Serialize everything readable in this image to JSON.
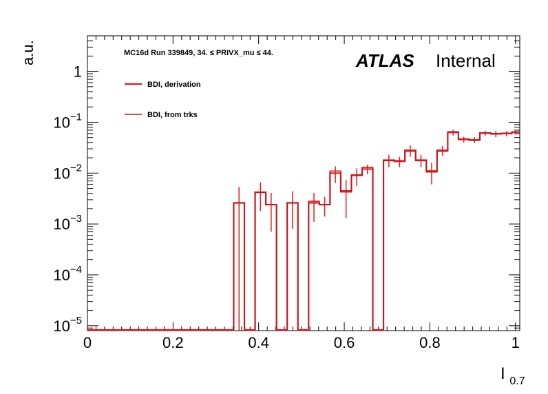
{
  "header": {
    "brand": "ATLAS",
    "status": "Internal",
    "condition": "MC16d Run 339849, 34. ≤ PRIVX_mu ≤ 44."
  },
  "chart_data": {
    "type": "line",
    "title": "",
    "xlabel_main": "I",
    "xlabel_sub": "0.7",
    "ylabel": "a.u.",
    "xlim": [
      0,
      1.01
    ],
    "ylim": [
      8e-06,
      5
    ],
    "yscale": "log",
    "grid": false,
    "x_ticks": [
      {
        "v": 0,
        "label": "0"
      },
      {
        "v": 0.2,
        "label": "0.2"
      },
      {
        "v": 0.4,
        "label": "0.4"
      },
      {
        "v": 0.6,
        "label": "0.6"
      },
      {
        "v": 0.8,
        "label": "0.8"
      },
      {
        "v": 1,
        "label": "1"
      }
    ],
    "y_ticks": [
      {
        "v": 1e-05,
        "base": "10",
        "exp": "−5"
      },
      {
        "v": 0.0001,
        "base": "10",
        "exp": "−4"
      },
      {
        "v": 0.001,
        "base": "10",
        "exp": "−3"
      },
      {
        "v": 0.01,
        "base": "10",
        "exp": "−2"
      },
      {
        "v": 0.1,
        "base": "10",
        "exp": "−1"
      },
      {
        "v": 1,
        "base": "1",
        "exp": ""
      }
    ],
    "legend_position": "top-left",
    "series": [
      {
        "name": "BDI, derivation",
        "color": "#e8191d",
        "width": 2.2,
        "show_errors": true,
        "bin_edges": [
          0.3417,
          0.3667,
          0.3917,
          0.4167,
          0.4417,
          0.4667,
          0.4917,
          0.5167,
          0.5417,
          0.5667,
          0.5917,
          0.6167,
          0.6417,
          0.6667,
          0.6917,
          0.7167,
          0.7417,
          0.7667,
          0.7917,
          0.8167,
          0.8417,
          0.8667,
          0.8917,
          0.9167,
          0.9417,
          0.9667,
          0.9917,
          1.01
        ],
        "values": [
          0.0026,
          0,
          0.0042,
          0.0024,
          0,
          0.0026,
          0,
          0.0026,
          0.0024,
          0.01,
          0.0043,
          0.009,
          0.012,
          0,
          0.018,
          0.017,
          0.028,
          0.018,
          0.011,
          0.028,
          0.063,
          0.046,
          0.045,
          0.061,
          0.059,
          0.06,
          0.064
        ],
        "errors": [
          0.0027,
          0,
          0.0024,
          0.0017,
          0,
          0.0018,
          0,
          0.0015,
          0.001,
          0.0036,
          0.003,
          0.0034,
          0.0025,
          0,
          0.005,
          0.004,
          0.007,
          0.005,
          0.005,
          0.006,
          0.008,
          0.006,
          0.006,
          0.007,
          0.008,
          0.007,
          0.007
        ]
      },
      {
        "name": "BDI, from trks",
        "color": "#c0181c",
        "width": 1.6,
        "show_errors": false,
        "bin_edges": [
          0.3417,
          0.3667,
          0.3917,
          0.4167,
          0.4417,
          0.4667,
          0.4917,
          0.5167,
          0.5417,
          0.5667,
          0.5917,
          0.6167,
          0.6417,
          0.6667,
          0.6917,
          0.7167,
          0.7417,
          0.7667,
          0.7917,
          0.8167,
          0.8417,
          0.8667,
          0.8917,
          0.9167,
          0.9417,
          0.9667,
          0.9917,
          1.01
        ],
        "values": [
          0.0026,
          0,
          0.0042,
          0.0024,
          0,
          0.0026,
          0,
          0.0028,
          0.0024,
          0.011,
          0.0045,
          0.0092,
          0.013,
          0,
          0.0175,
          0.0175,
          0.027,
          0.0175,
          0.0105,
          0.027,
          0.065,
          0.047,
          0.044,
          0.062,
          0.06,
          0.061,
          0.065
        ]
      }
    ]
  }
}
